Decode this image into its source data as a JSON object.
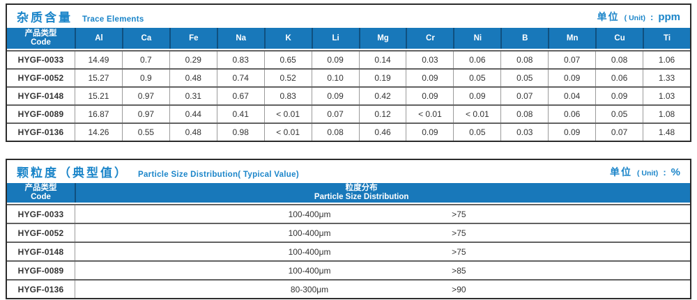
{
  "table1": {
    "title_zh": "杂质含量",
    "title_en": "Trace Elements",
    "unit": {
      "zh": "单位",
      "en": "( Unit)",
      "colon": ":",
      "value": "ppm"
    },
    "header": {
      "code_zh": "产品类型",
      "code_en": "Code",
      "elements": [
        "Al",
        "Ca",
        "Fe",
        "Na",
        "K",
        "Li",
        "Mg",
        "Cr",
        "Ni",
        "B",
        "Mn",
        "Cu",
        "Ti"
      ]
    },
    "rows": [
      {
        "code": "HYGF-0033",
        "values": [
          "14.49",
          "0.7",
          "0.29",
          "0.83",
          "0.65",
          "0.09",
          "0.14",
          "0.03",
          "0.06",
          "0.08",
          "0.07",
          "0.08",
          "1.06"
        ]
      },
      {
        "code": "HYGF-0052",
        "values": [
          "15.27",
          "0.9",
          "0.48",
          "0.74",
          "0.52",
          "0.10",
          "0.19",
          "0.09",
          "0.05",
          "0.05",
          "0.09",
          "0.06",
          "1.33"
        ]
      },
      {
        "code": "HYGF-0148",
        "values": [
          "15.21",
          "0.97",
          "0.31",
          "0.67",
          "0.83",
          "0.09",
          "0.42",
          "0.09",
          "0.09",
          "0.07",
          "0.04",
          "0.09",
          "1.03"
        ]
      },
      {
        "code": "HYGF-0089",
        "values": [
          "16.87",
          "0.97",
          "0.44",
          "0.41",
          "< 0.01",
          "0.07",
          "0.12",
          "< 0.01",
          "< 0.01",
          "0.08",
          "0.06",
          "0.05",
          "1.08"
        ]
      },
      {
        "code": "HYGF-0136",
        "values": [
          "14.26",
          "0.55",
          "0.48",
          "0.98",
          "< 0.01",
          "0.08",
          "0.46",
          "0.09",
          "0.05",
          "0.03",
          "0.09",
          "0.07",
          "1.48"
        ]
      }
    ]
  },
  "table2": {
    "title_zh": "颗粒度（典型值）",
    "title_en": "Particle Size Distribution( Typical Value)",
    "unit": {
      "zh": "单位",
      "en": "( Unit)",
      "colon": ":",
      "value": "%"
    },
    "header": {
      "code_zh": "产品类型",
      "code_en": "Code",
      "dist_zh": "粒度分布",
      "dist_en": "Particle Size Distribution"
    },
    "rows": [
      {
        "code": "HYGF-0033",
        "range": "100-400μm",
        "percent": ">75"
      },
      {
        "code": "HYGF-0052",
        "range": "100-400μm",
        "percent": ">75"
      },
      {
        "code": "HYGF-0148",
        "range": "100-400μm",
        "percent": ">75"
      },
      {
        "code": "HYGF-0089",
        "range": "100-400μm",
        "percent": ">85"
      },
      {
        "code": "HYGF-0136",
        "range": "80-300μm",
        "percent": ">90"
      }
    ]
  }
}
